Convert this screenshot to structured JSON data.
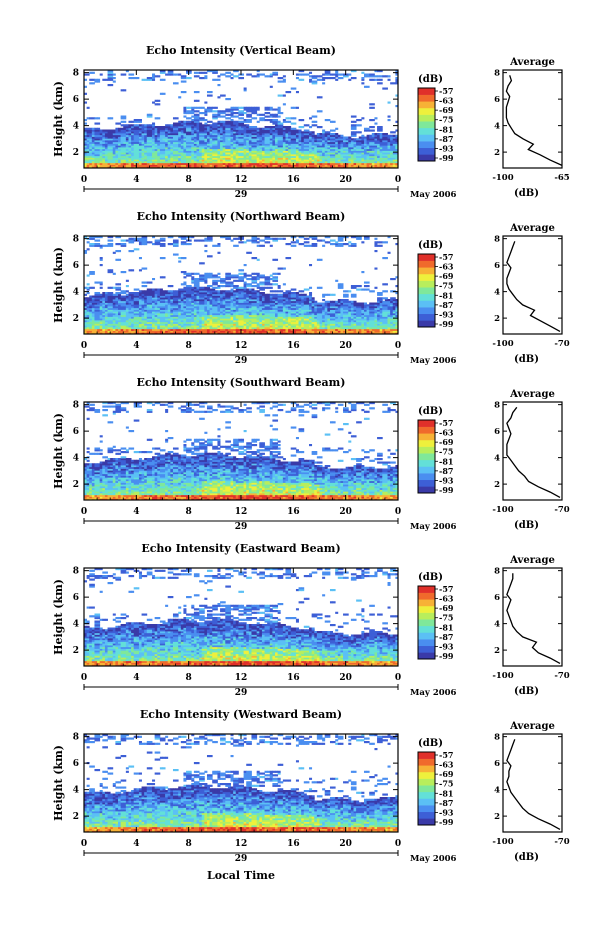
{
  "colors": {
    "scale": [
      "#3a3aa8",
      "#3d5fd6",
      "#4a8ef0",
      "#5bc0f5",
      "#63e0d8",
      "#7fe89a",
      "#b8ee5c",
      "#eef03c",
      "#f7b236",
      "#f06a2c",
      "#e0302a"
    ],
    "line": "#000000",
    "background": "#ffffff"
  },
  "figure": {
    "xlabel": "Local Time",
    "date_label": "May 2006",
    "day_label": "29",
    "colorbar_unit": "(dB)",
    "colorbar_ticks": [
      "-57",
      "-63",
      "-69",
      "-75",
      "-81",
      "-87",
      "-93",
      "-99"
    ],
    "profile_title": "Average",
    "profile_unit": "(dB)"
  },
  "chart_data": [
    {
      "type": "heatmap",
      "title": "Echo Intensity (Vertical Beam)",
      "ylabel": "Height (km)",
      "x_ticks": [
        "0",
        "4",
        "8",
        "12",
        "16",
        "20",
        "0"
      ],
      "y_ticks": [
        "2",
        "4",
        "6",
        "8"
      ],
      "ylim": [
        0.8,
        8.2
      ],
      "xlim": [
        0,
        24
      ],
      "zlim": [
        -99,
        -57
      ],
      "profile": {
        "type": "line",
        "x_ticks": [
          "-100",
          "-65"
        ],
        "xlim": [
          -100,
          -65
        ],
        "y_ticks": [
          "2",
          "4",
          "6",
          "8"
        ],
        "heights": [
          1.0,
          1.4,
          1.8,
          2.2,
          2.6,
          3.0,
          3.4,
          3.8,
          4.2,
          4.6,
          5.0,
          5.4,
          5.8,
          6.2,
          6.6,
          7.0,
          7.4,
          7.8
        ],
        "values": [
          -65,
          -72,
          -78,
          -85,
          -82,
          -88,
          -93,
          -95,
          -97,
          -98,
          -98,
          -98,
          -97,
          -96,
          -98,
          -97,
          -95,
          -96
        ]
      }
    },
    {
      "type": "heatmap",
      "title": "Echo Intensity (Northward Beam)",
      "ylabel": "Height (km)",
      "x_ticks": [
        "0",
        "4",
        "8",
        "12",
        "16",
        "20",
        "0"
      ],
      "y_ticks": [
        "2",
        "4",
        "6",
        "8"
      ],
      "ylim": [
        0.8,
        8.2
      ],
      "xlim": [
        0,
        24
      ],
      "zlim": [
        -99,
        -57
      ],
      "profile": {
        "type": "line",
        "x_ticks": [
          "-100",
          "-70"
        ],
        "xlim": [
          -100,
          -70
        ],
        "y_ticks": [
          "2",
          "4",
          "6",
          "8"
        ],
        "heights": [
          1.0,
          1.4,
          1.8,
          2.2,
          2.6,
          3.0,
          3.4,
          3.8,
          4.2,
          4.6,
          5.0,
          5.4,
          5.8,
          6.2,
          6.6,
          7.0,
          7.4,
          7.8
        ],
        "values": [
          -71,
          -76,
          -81,
          -86,
          -84,
          -90,
          -93,
          -95,
          -97,
          -98,
          -98,
          -97,
          -96,
          -98,
          -97,
          -96,
          -95,
          -94
        ]
      }
    },
    {
      "type": "heatmap",
      "title": "Echo Intensity (Southward Beam)",
      "ylabel": "Height (km)",
      "x_ticks": [
        "0",
        "4",
        "8",
        "12",
        "16",
        "20",
        "0"
      ],
      "y_ticks": [
        "2",
        "4",
        "6",
        "8"
      ],
      "ylim": [
        0.8,
        8.2
      ],
      "xlim": [
        0,
        24
      ],
      "zlim": [
        -99,
        -57
      ],
      "profile": {
        "type": "line",
        "x_ticks": [
          "-100",
          "-70"
        ],
        "xlim": [
          -100,
          -70
        ],
        "y_ticks": [
          "2",
          "4",
          "6",
          "8"
        ],
        "heights": [
          1.0,
          1.4,
          1.8,
          2.2,
          2.6,
          3.0,
          3.4,
          3.8,
          4.2,
          4.6,
          5.0,
          5.4,
          5.8,
          6.2,
          6.6,
          7.0,
          7.4,
          7.8
        ],
        "values": [
          -71,
          -76,
          -82,
          -87,
          -89,
          -92,
          -94,
          -96,
          -98,
          -98,
          -98,
          -97,
          -96,
          -97,
          -98,
          -96,
          -95,
          -93
        ]
      }
    },
    {
      "type": "heatmap",
      "title": "Echo Intensity (Eastward Beam)",
      "ylabel": "Height (km)",
      "x_ticks": [
        "0",
        "4",
        "8",
        "12",
        "16",
        "20",
        "0"
      ],
      "y_ticks": [
        "2",
        "4",
        "6",
        "8"
      ],
      "ylim": [
        0.8,
        8.2
      ],
      "xlim": [
        0,
        24
      ],
      "zlim": [
        -99,
        -57
      ],
      "profile": {
        "type": "line",
        "x_ticks": [
          "-100",
          "-70"
        ],
        "xlim": [
          -100,
          -70
        ],
        "y_ticks": [
          "2",
          "4",
          "6",
          "8"
        ],
        "heights": [
          1.0,
          1.4,
          1.8,
          2.2,
          2.6,
          3.0,
          3.4,
          3.8,
          4.2,
          4.6,
          5.0,
          5.4,
          5.8,
          6.2,
          6.6,
          7.0,
          7.4,
          7.8
        ],
        "values": [
          -71,
          -76,
          -82,
          -85,
          -83,
          -90,
          -93,
          -95,
          -96,
          -97,
          -98,
          -97,
          -96,
          -98,
          -97,
          -96,
          -95,
          -95
        ]
      }
    },
    {
      "type": "heatmap",
      "title": "Echo Intensity (Westward Beam)",
      "ylabel": "Height (km)",
      "x_ticks": [
        "0",
        "4",
        "8",
        "12",
        "16",
        "20",
        "0"
      ],
      "y_ticks": [
        "2",
        "4",
        "6",
        "8"
      ],
      "ylim": [
        0.8,
        8.2
      ],
      "xlim": [
        0,
        24
      ],
      "zlim": [
        -99,
        -57
      ],
      "profile": {
        "type": "line",
        "x_ticks": [
          "-100",
          "-70"
        ],
        "xlim": [
          -100,
          -70
        ],
        "y_ticks": [
          "2",
          "4",
          "6",
          "8"
        ],
        "heights": [
          1.0,
          1.4,
          1.8,
          2.2,
          2.6,
          3.0,
          3.4,
          3.8,
          4.2,
          4.6,
          5.0,
          5.4,
          5.8,
          6.2,
          6.6,
          7.0,
          7.4,
          7.8
        ],
        "values": [
          -71,
          -76,
          -82,
          -87,
          -90,
          -92,
          -94,
          -96,
          -97,
          -98,
          -97,
          -97,
          -96,
          -98,
          -97,
          -96,
          -95,
          -94
        ]
      }
    }
  ]
}
